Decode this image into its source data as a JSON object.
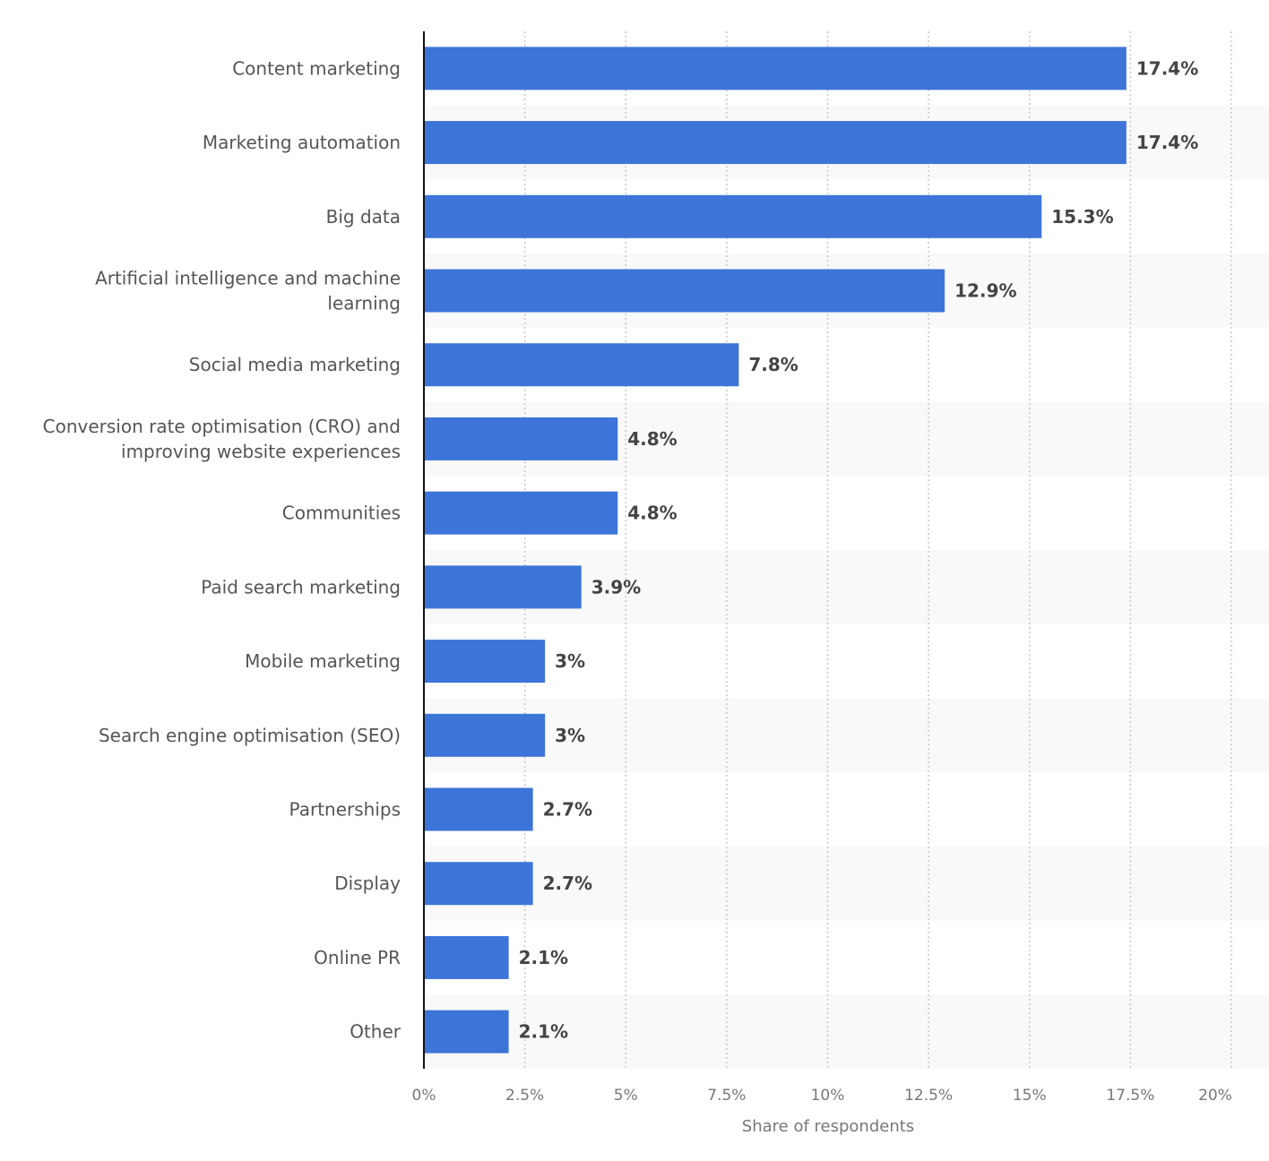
{
  "chart_data": {
    "type": "bar",
    "orientation": "horizontal",
    "categories": [
      [
        "Content marketing"
      ],
      [
        "Marketing automation"
      ],
      [
        "Big data"
      ],
      [
        "Artificial intelligence and machine",
        "learning"
      ],
      [
        "Social media marketing"
      ],
      [
        "Conversion rate optimisation (CRO) and",
        "improving website experiences"
      ],
      [
        "Communities"
      ],
      [
        "Paid search marketing"
      ],
      [
        "Mobile marketing"
      ],
      [
        "Search engine optimisation (SEO)"
      ],
      [
        "Partnerships"
      ],
      [
        "Display"
      ],
      [
        "Online PR"
      ],
      [
        "Other"
      ]
    ],
    "values": [
      17.4,
      17.4,
      15.3,
      12.9,
      7.8,
      4.8,
      4.8,
      3.9,
      3,
      3,
      2.7,
      2.7,
      2.1,
      2.1
    ],
    "value_labels": [
      "17.4%",
      "17.4%",
      "15.3%",
      "12.9%",
      "7.8%",
      "4.8%",
      "4.8%",
      "3.9%",
      "3%",
      "3%",
      "2.7%",
      "2.7%",
      "2.1%",
      "2.1%"
    ],
    "xlabel": "Share of respondents",
    "ylabel": "",
    "xlim": [
      0,
      20
    ],
    "xticks": [
      0,
      2.5,
      5,
      7.5,
      10,
      12.5,
      15,
      17.5,
      20
    ],
    "xtick_labels": [
      "0%",
      "2.5%",
      "5%",
      "7.5%",
      "10%",
      "12.5%",
      "15%",
      "17.5%",
      "20%"
    ],
    "grid": "vertical dotted",
    "bar_color": "#3d74d8",
    "band_color": "#f9f9f9"
  }
}
